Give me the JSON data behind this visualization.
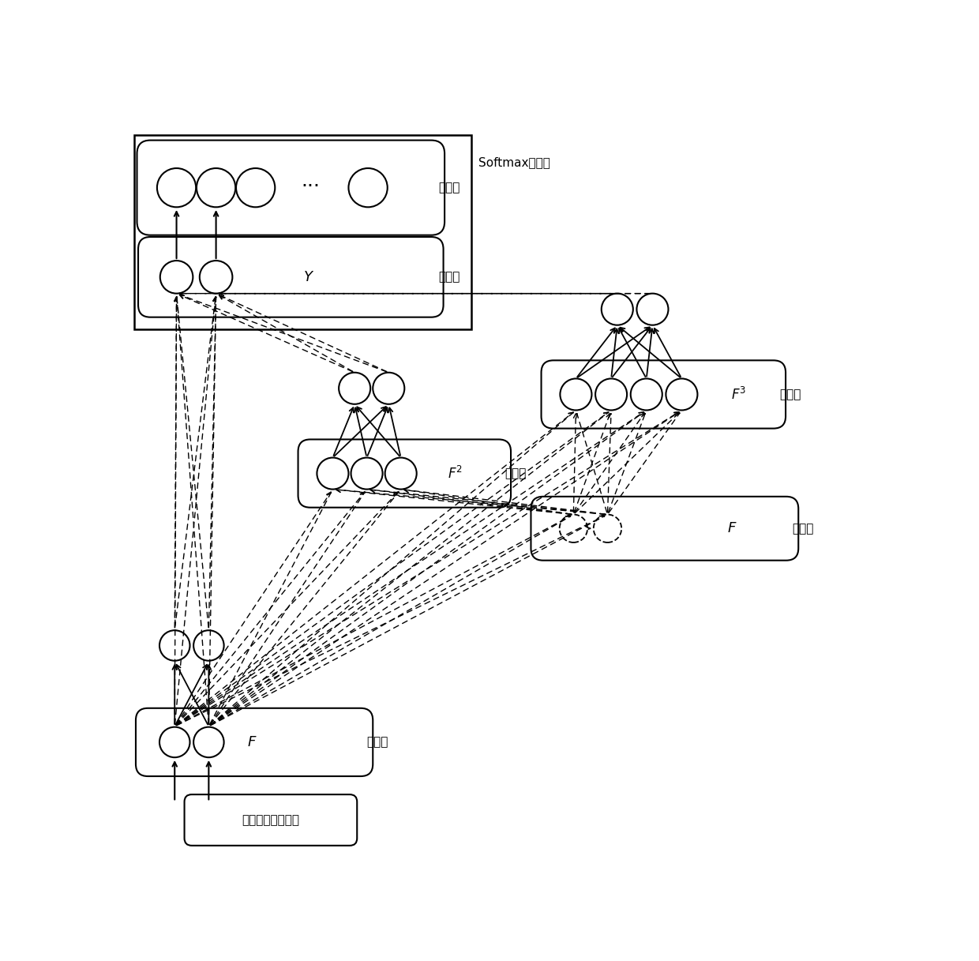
{
  "bg_color": "#ffffff",
  "softmax_label": "Softmax分类器",
  "biaoqianji_label": "标签集",
  "yincang_label": "隐蓏层",
  "gongneng_label": "功能连接聚合矩阵",
  "Y_label": "Y",
  "F_label": "F",
  "F2_label": "F^2",
  "F3_label": "F^3",
  "figw": 12.4,
  "figh": 12.17,
  "xmax": 12.4,
  "ymax": 12.17
}
